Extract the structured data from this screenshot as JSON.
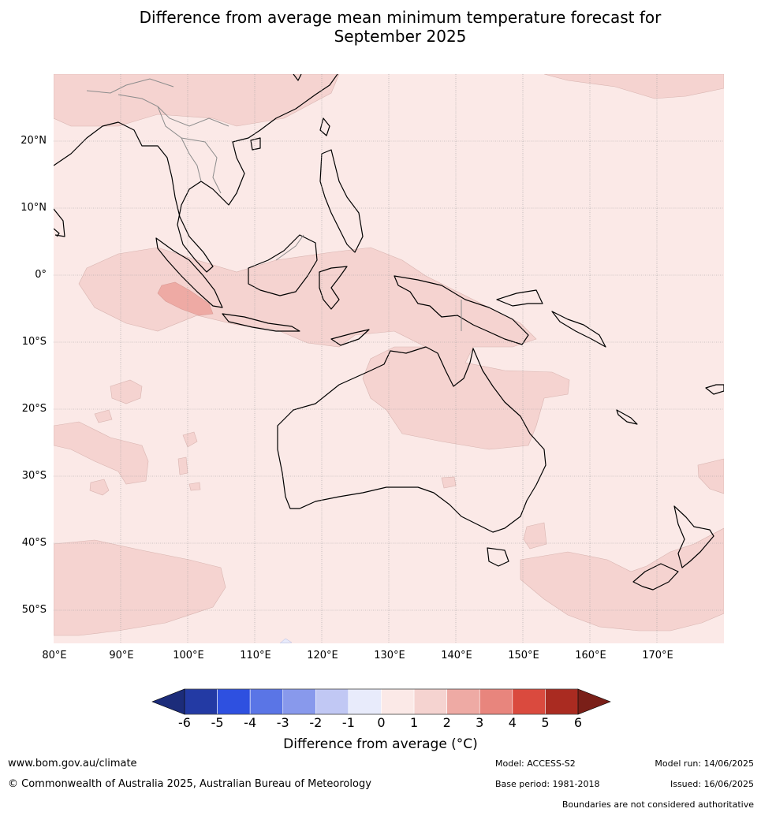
{
  "title": {
    "line1": "Difference from average mean minimum temperature forecast for",
    "line2": "September 2025"
  },
  "map": {
    "lat_labels": [
      "20°N",
      "10°N",
      "0°",
      "10°S",
      "20°S",
      "30°S",
      "40°S",
      "50°S"
    ],
    "lon_labels": [
      "80°E",
      "90°E",
      "100°E",
      "110°E",
      "120°E",
      "130°E",
      "140°E",
      "150°E",
      "160°E",
      "170°E"
    ],
    "background_anomaly_color": "#fbe9e7",
    "anomaly_1_2_color": "#f5d3d0",
    "anomaly_2_3_color": "#eeaaa4",
    "coastline_color": "#000000",
    "border_color": "#8c8c8c",
    "grid_color": "#a0a0a0"
  },
  "colorbar": {
    "ticks": [
      "-6",
      "-5",
      "-4",
      "-3",
      "-2",
      "-1",
      "0",
      "1",
      "2",
      "3",
      "4",
      "5",
      "6"
    ],
    "colors": [
      "#233aa4",
      "#2e50e0",
      "#5a75e6",
      "#8899ec",
      "#c1c8f4",
      "#e8ebfb",
      "#fbe9e7",
      "#f5d3d0",
      "#eeaaa4",
      "#e8857d",
      "#da4a3e",
      "#aa2b21"
    ],
    "low_extend_color": "#1c2c7a",
    "high_extend_color": "#7a1f18",
    "label": "Difference from average (°C)"
  },
  "footer": {
    "website": "www.bom.gov.au/climate",
    "copyright": "© Commonwealth of Australia 2025, Australian Bureau of Meteorology",
    "model": "Model: ACCESS-S2",
    "base_period": "Base period: 1981-2018",
    "model_run": "Model run: 14/06/2025",
    "issued": "Issued: 16/06/2025",
    "disclaimer": "Boundaries are not considered authoritative"
  }
}
